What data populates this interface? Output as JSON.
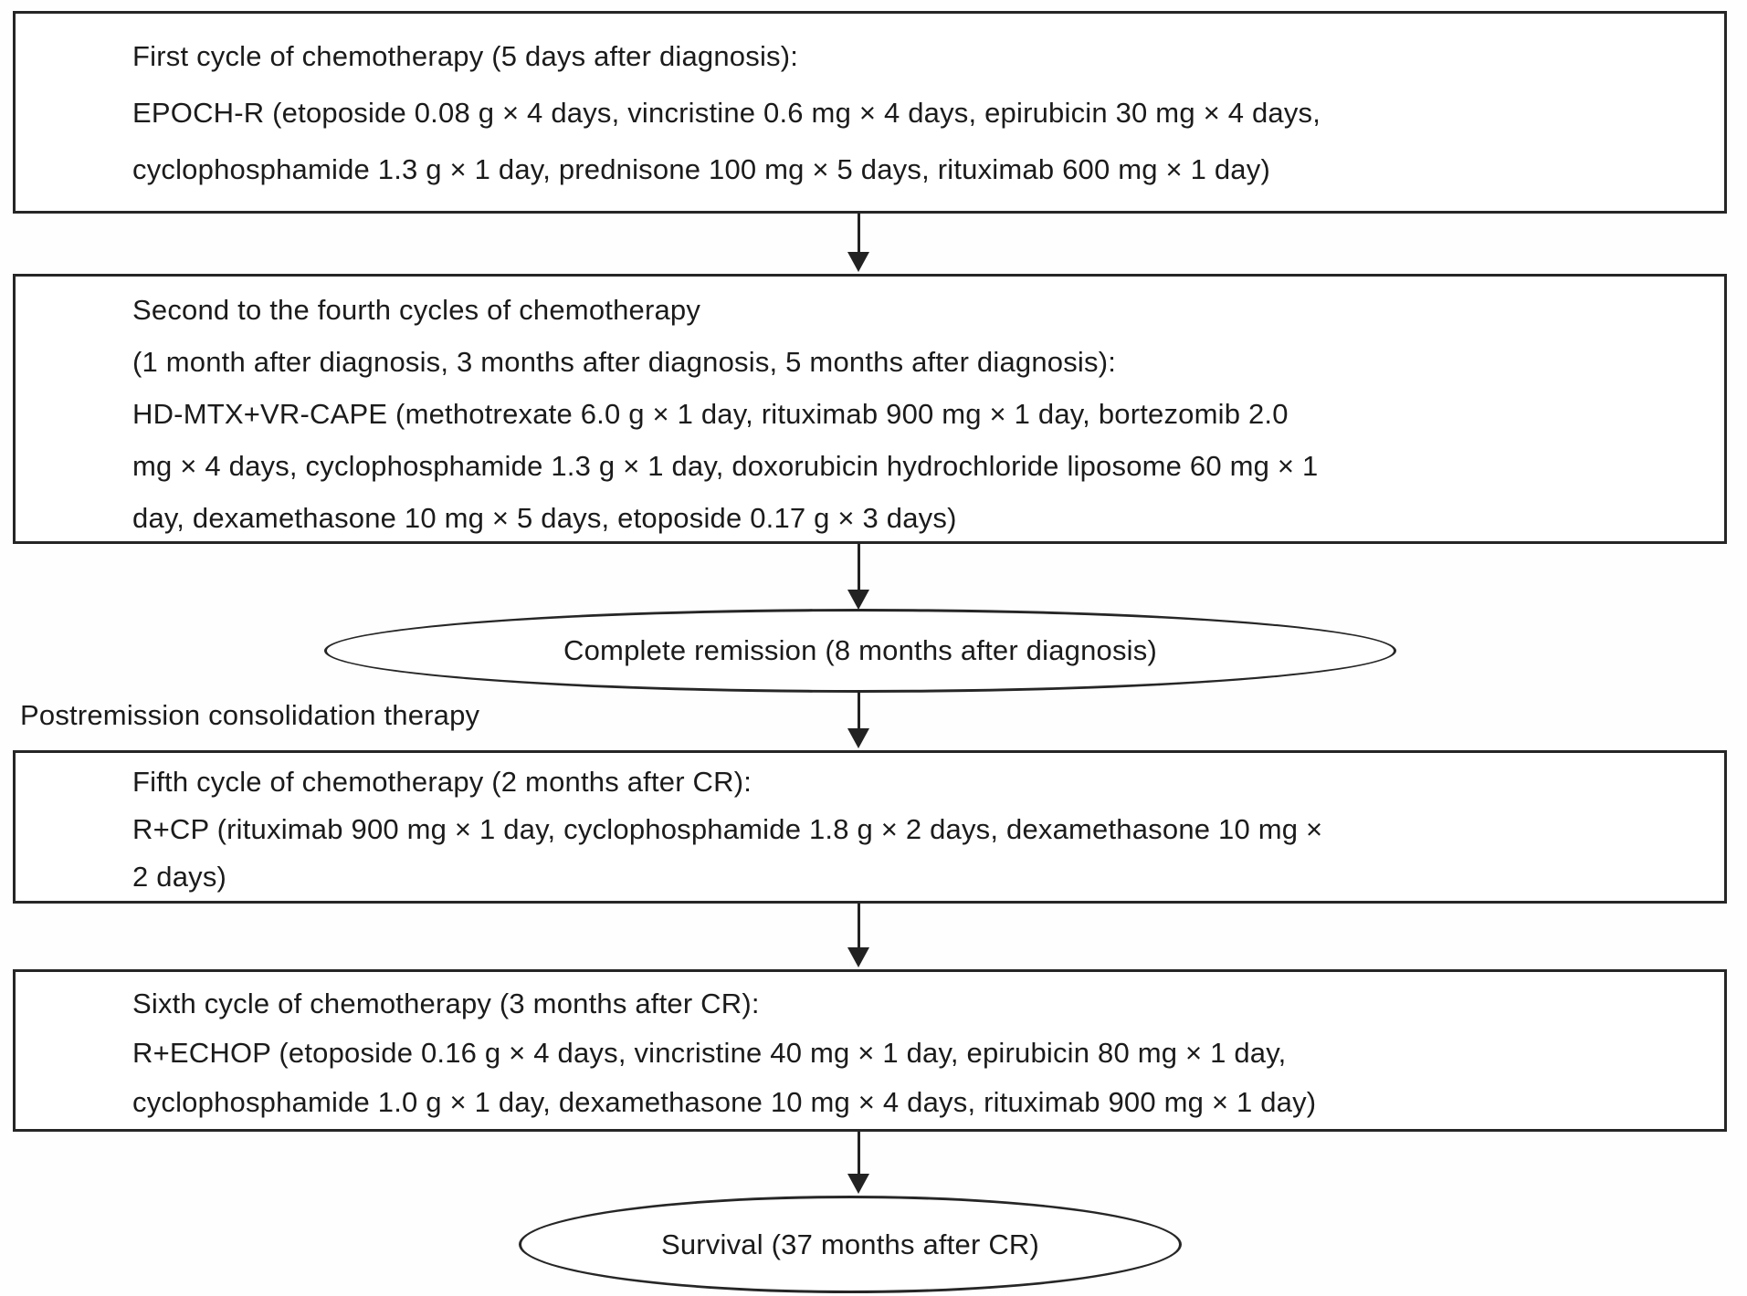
{
  "figure": {
    "background": "#ffffff",
    "line_color": "#262626",
    "text_color": "#1b1b1b"
  },
  "nodes": {
    "box1": {
      "lines": [
        "First cycle of chemotherapy (5 days after diagnosis):",
        "EPOCH-R (etoposide 0.08 g × 4 days, vincristine 0.6 mg × 4 days, epirubicin 30 mg × 4 days,",
        "cyclophosphamide 1.3 g × 1 day, prednisone 100 mg × 5 days, rituximab 600 mg × 1 day)"
      ]
    },
    "box2": {
      "lines": [
        "Second to the fourth cycles of chemotherapy",
        "(1 month after diagnosis, 3 months after diagnosis, 5 months after diagnosis):",
        "HD-MTX+VR-CAPE (methotrexate 6.0 g × 1 day, rituximab 900 mg × 1 day, bortezomib 2.0",
        "mg × 4 days, cyclophosphamide 1.3 g × 1 day, doxorubicin hydrochloride liposome 60 mg × 1",
        "day, dexamethasone 10 mg × 5 days, etoposide 0.17 g × 3 days)"
      ]
    },
    "remission_ellipse": {
      "label": "Complete remission (8 months after diagnosis)"
    },
    "section_label": "Postremission consolidation therapy",
    "box3": {
      "lines": [
        "Fifth cycle of chemotherapy (2 months after CR):",
        "R+CP (rituximab 900 mg × 1 day, cyclophosphamide 1.8 g × 2 days, dexamethasone 10 mg ×",
        "2 days)"
      ]
    },
    "box4": {
      "lines": [
        "Sixth cycle of chemotherapy (3 months after CR):",
        "R+ECHOP (etoposide 0.16 g × 4 days, vincristine 40 mg × 1 day, epirubicin 80 mg × 1 day,",
        "cyclophosphamide 1.0 g × 1 day, dexamethasone 10 mg × 4 days, rituximab 900 mg × 1 day)"
      ]
    },
    "survival_ellipse": {
      "label": "Survival (37 months after CR)"
    }
  }
}
